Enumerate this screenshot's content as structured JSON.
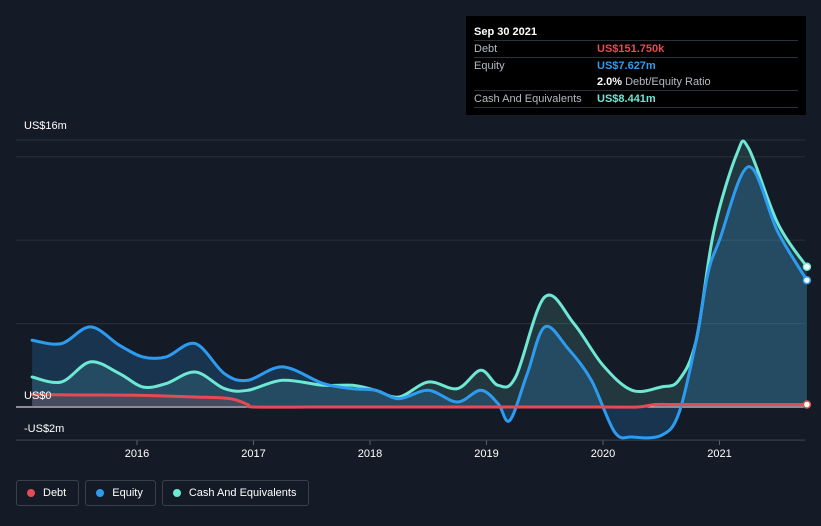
{
  "tooltip": {
    "date": "Sep 30 2021",
    "debt_label": "Debt",
    "debt_value": "US$151.750k",
    "equity_label": "Equity",
    "equity_value": "US$7.627m",
    "ratio_value": "2.0%",
    "ratio_label": "Debt/Equity Ratio",
    "cash_label": "Cash And Equivalents",
    "cash_value": "US$8.441m"
  },
  "legend": [
    {
      "label": "Debt",
      "color": "#e64b55"
    },
    {
      "label": "Equity",
      "color": "#2d9cf0"
    },
    {
      "label": "Cash And Equivalents",
      "color": "#6ee8d4"
    }
  ],
  "chart_data": {
    "type": "area",
    "ylim": [
      -2,
      16
    ],
    "y_tick_labels": [
      "US$16m",
      "US$0",
      "-US$2m"
    ],
    "x_tick_labels": [
      "2016",
      "2017",
      "2018",
      "2019",
      "2020",
      "2021"
    ],
    "xlim": [
      2015.1,
      2021.75
    ],
    "series": [
      {
        "name": "Debt",
        "color": "#e64b55",
        "x": [
          2015.1,
          2015.5,
          2016.0,
          2016.5,
          2016.8,
          2016.95,
          2017.0,
          2017.5,
          2018.0,
          2018.5,
          2019.0,
          2019.5,
          2020.0,
          2020.3,
          2020.45,
          2020.6,
          2021.0,
          2021.5,
          2021.75
        ],
        "values": [
          0.75,
          0.72,
          0.7,
          0.6,
          0.5,
          0.15,
          0.0,
          0.0,
          0.0,
          0.0,
          0.0,
          0.0,
          0.0,
          0.0,
          0.15,
          0.15,
          0.15,
          0.15,
          0.15
        ]
      },
      {
        "name": "Equity",
        "color": "#2d9cf0",
        "x": [
          2015.1,
          2015.35,
          2015.6,
          2015.85,
          2016.05,
          2016.25,
          2016.5,
          2016.75,
          2016.95,
          2017.25,
          2017.6,
          2017.85,
          2018.05,
          2018.25,
          2018.5,
          2018.75,
          2018.95,
          2019.1,
          2019.2,
          2019.35,
          2019.5,
          2019.7,
          2019.9,
          2020.1,
          2020.25,
          2020.5,
          2020.65,
          2020.8,
          2020.9,
          2021.0,
          2021.25,
          2021.5,
          2021.75
        ],
        "values": [
          4.0,
          3.8,
          4.8,
          3.7,
          3.0,
          3.0,
          3.8,
          2.0,
          1.6,
          2.4,
          1.4,
          1.1,
          1.0,
          0.5,
          1.0,
          0.3,
          1.0,
          0.2,
          -0.8,
          2.0,
          4.8,
          3.5,
          1.6,
          -1.5,
          -1.8,
          -1.7,
          -0.4,
          4.0,
          8.0,
          10.0,
          14.4,
          10.5,
          7.6
        ]
      },
      {
        "name": "Cash And Equivalents",
        "color": "#6ee8d4",
        "x": [
          2015.1,
          2015.35,
          2015.6,
          2015.85,
          2016.05,
          2016.25,
          2016.5,
          2016.75,
          2016.95,
          2017.25,
          2017.6,
          2017.85,
          2018.05,
          2018.25,
          2018.5,
          2018.75,
          2018.95,
          2019.1,
          2019.25,
          2019.5,
          2019.75,
          2020.0,
          2020.25,
          2020.5,
          2020.65,
          2020.8,
          2020.95,
          2021.15,
          2021.25,
          2021.5,
          2021.75
        ],
        "values": [
          1.8,
          1.5,
          2.7,
          2.0,
          1.2,
          1.4,
          2.1,
          1.1,
          1.0,
          1.6,
          1.3,
          1.3,
          1.0,
          0.6,
          1.5,
          1.1,
          2.2,
          1.3,
          1.8,
          6.6,
          5.0,
          2.5,
          1.0,
          1.2,
          1.6,
          4.0,
          10.5,
          15.2,
          15.5,
          11.0,
          8.4
        ]
      }
    ]
  }
}
